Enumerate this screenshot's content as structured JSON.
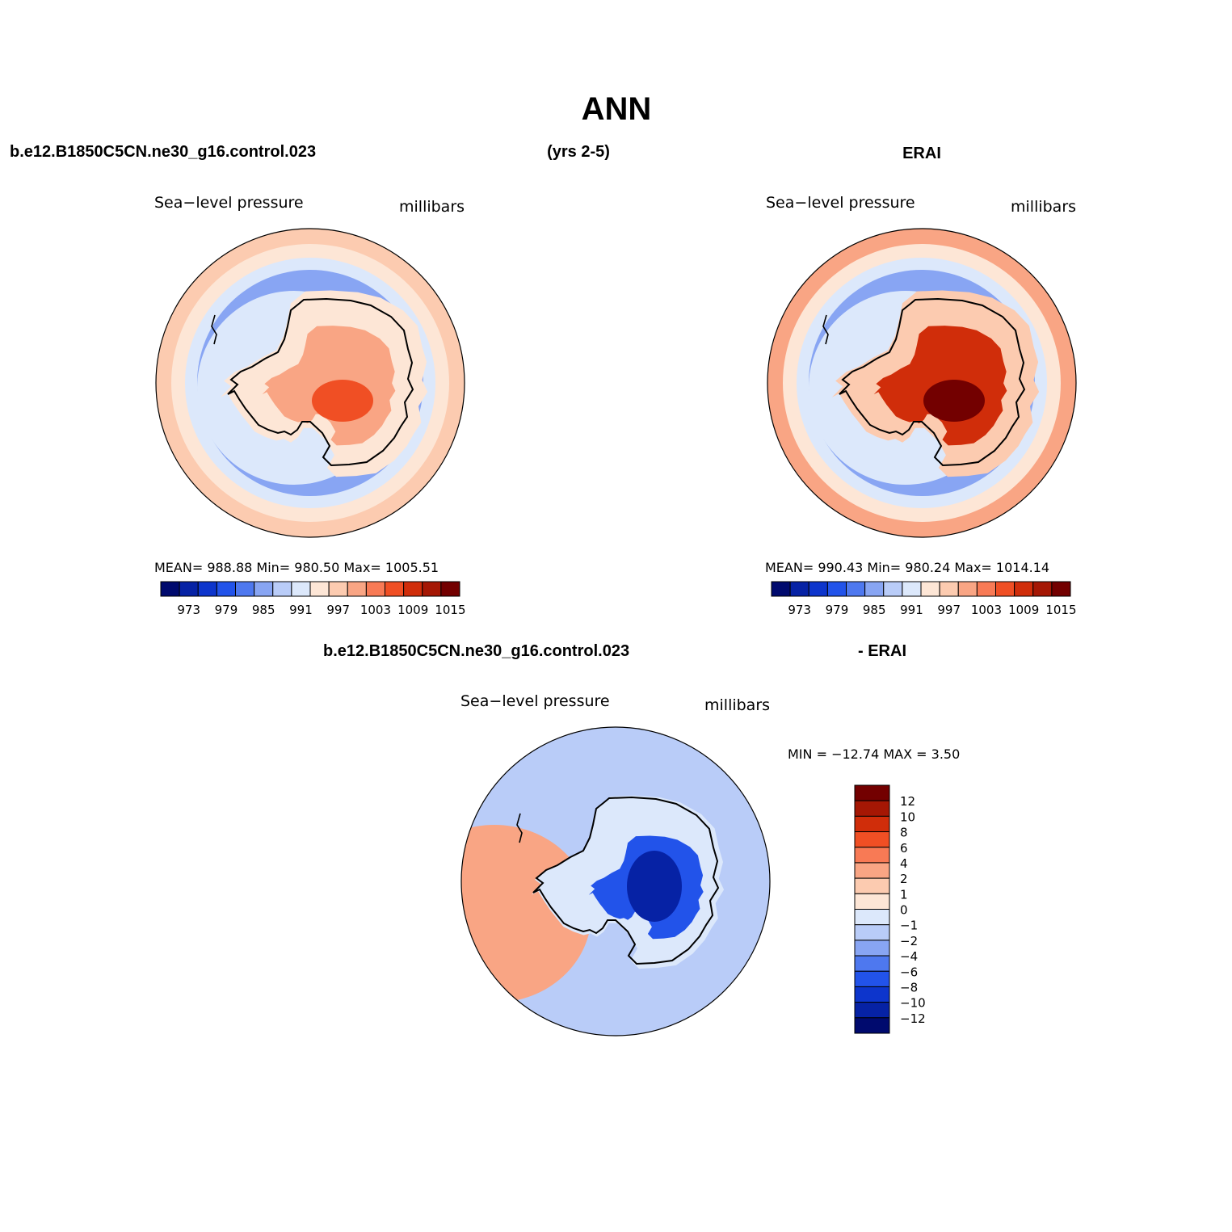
{
  "figure": {
    "title": "ANN",
    "header_left": "b.e12.B1850C5CN.ne30_g16.control.023",
    "header_mid": "(yrs 2-5)",
    "header_right": "ERAI",
    "diff_header_left": "b.e12.B1850C5CN.ne30_g16.control.023",
    "diff_header_right": "- ERAI"
  },
  "colors": {
    "abs_levels": [
      "#000a6e",
      "#0622a5",
      "#0d35cc",
      "#2253ea",
      "#4e78ef",
      "#88a5f3",
      "#b9ccf8",
      "#dce8fb",
      "#fde6d6",
      "#fccbb0",
      "#f9a584",
      "#f87a55",
      "#f04f24",
      "#d02d0a",
      "#a51704",
      "#730000"
    ],
    "diff_levels": [
      "#000a6e",
      "#0622a5",
      "#0d35cc",
      "#2253ea",
      "#4e78ef",
      "#88a5f3",
      "#b9ccf8",
      "#dce8fb",
      "#fde6d6",
      "#fccbb0",
      "#f9a584",
      "#f87a55",
      "#f04f24",
      "#d02d0a",
      "#a51704",
      "#730000"
    ],
    "coastline": "#000000"
  },
  "chart_data": [
    {
      "type": "heatmap",
      "projection": "south-polar-stereographic",
      "panel": "model",
      "left_title": "Sea−level pressure",
      "right_title": "millibars",
      "stats": "MEAN=  988.88   Min=  980.50   Max=  1005.51",
      "mean": 988.88,
      "min": 980.5,
      "max": 1005.51,
      "colorbar_labels": [
        "973",
        "979",
        "985",
        "991",
        "997",
        "1003",
        "1009",
        "1015"
      ],
      "colorbar_levels": [
        970,
        973,
        976,
        979,
        982,
        985,
        988,
        991,
        994,
        997,
        1000,
        1003,
        1006,
        1009,
        1012,
        1015
      ],
      "field": {
        "outer_ring": 994,
        "mid_ring": 988,
        "trough": 982,
        "continent_edge": 991,
        "continent_interior": 997,
        "continent_peak": 1003
      }
    },
    {
      "type": "heatmap",
      "projection": "south-polar-stereographic",
      "panel": "obs",
      "left_title": "Sea−level pressure",
      "right_title": "millibars",
      "stats": "MEAN=  990.43   Min=  980.24   Max=  1014.14",
      "mean": 990.43,
      "min": 980.24,
      "max": 1014.14,
      "colorbar_labels": [
        "973",
        "979",
        "985",
        "991",
        "997",
        "1003",
        "1009",
        "1015"
      ],
      "colorbar_levels": [
        970,
        973,
        976,
        979,
        982,
        985,
        988,
        991,
        994,
        997,
        1000,
        1003,
        1006,
        1009,
        1012,
        1015
      ],
      "field": {
        "outer_ring": 997,
        "mid_ring": 988,
        "trough": 982,
        "continent_edge": 994,
        "continent_interior": 1006,
        "continent_peak": 1012
      }
    },
    {
      "type": "heatmap",
      "projection": "south-polar-stereographic",
      "panel": "difference",
      "left_title": "Sea−level pressure",
      "right_title": "millibars",
      "stats": "MIN = −12.74 MAX =    3.50",
      "min": -12.74,
      "max": 3.5,
      "colorbar_labels": [
        "12",
        "10",
        "8",
        "6",
        "4",
        "2",
        "1",
        "0",
        "−1",
        "−2",
        "−4",
        "−6",
        "−8",
        "−10",
        "−12"
      ],
      "colorbar_levels": [
        -12,
        -10,
        -8,
        -6,
        -4,
        -2,
        -1,
        0,
        1,
        2,
        4,
        6,
        8,
        10,
        12
      ],
      "field": {
        "background": -2,
        "pacific_anomaly": 2,
        "continent": -8,
        "continent_core": -12
      }
    }
  ]
}
